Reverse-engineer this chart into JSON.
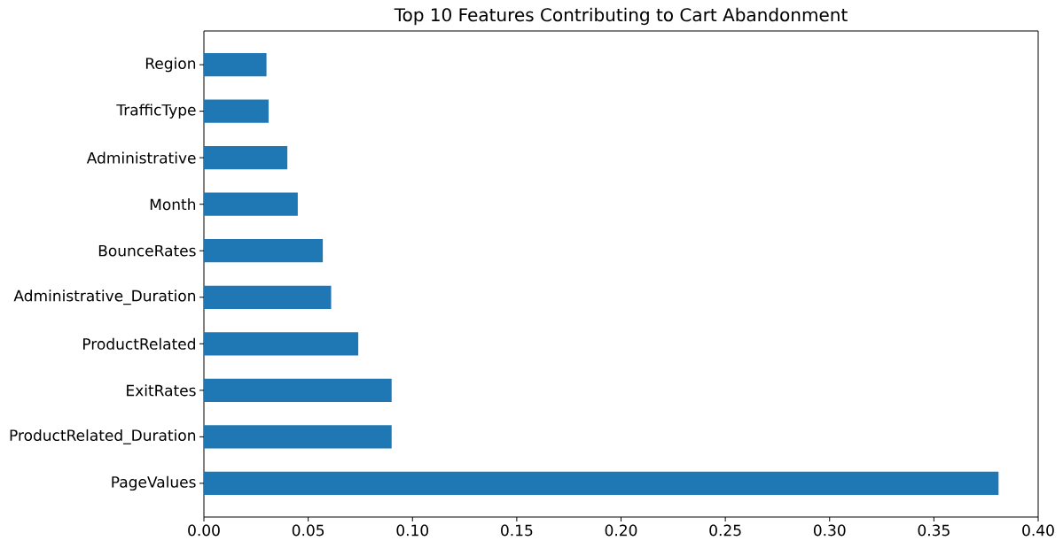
{
  "chart_data": {
    "type": "bar",
    "orientation": "horizontal",
    "title": "Top 10 Features Contributing to Cart Abandonment",
    "categories": [
      "Region",
      "TrafficType",
      "Administrative",
      "Month",
      "BounceRates",
      "Administrative_Duration",
      "ProductRelated",
      "ExitRates",
      "ProductRelated_Duration",
      "PageValues"
    ],
    "values": [
      0.03,
      0.031,
      0.04,
      0.045,
      0.057,
      0.061,
      0.074,
      0.09,
      0.09,
      0.381
    ],
    "color": "#1f77b4",
    "xlim": [
      0,
      0.4
    ],
    "xticks": [
      {
        "value": 0,
        "label": "0.00"
      },
      {
        "value": 0.05,
        "label": "0.05"
      },
      {
        "value": 0.1,
        "label": "0.10"
      },
      {
        "value": 0.15,
        "label": "0.15"
      },
      {
        "value": 0.2,
        "label": "0.20"
      },
      {
        "value": 0.25,
        "label": "0.25"
      },
      {
        "value": 0.3,
        "label": "0.30"
      },
      {
        "value": 0.35,
        "label": "0.35"
      },
      {
        "value": 0.4,
        "label": "0.40"
      }
    ]
  }
}
